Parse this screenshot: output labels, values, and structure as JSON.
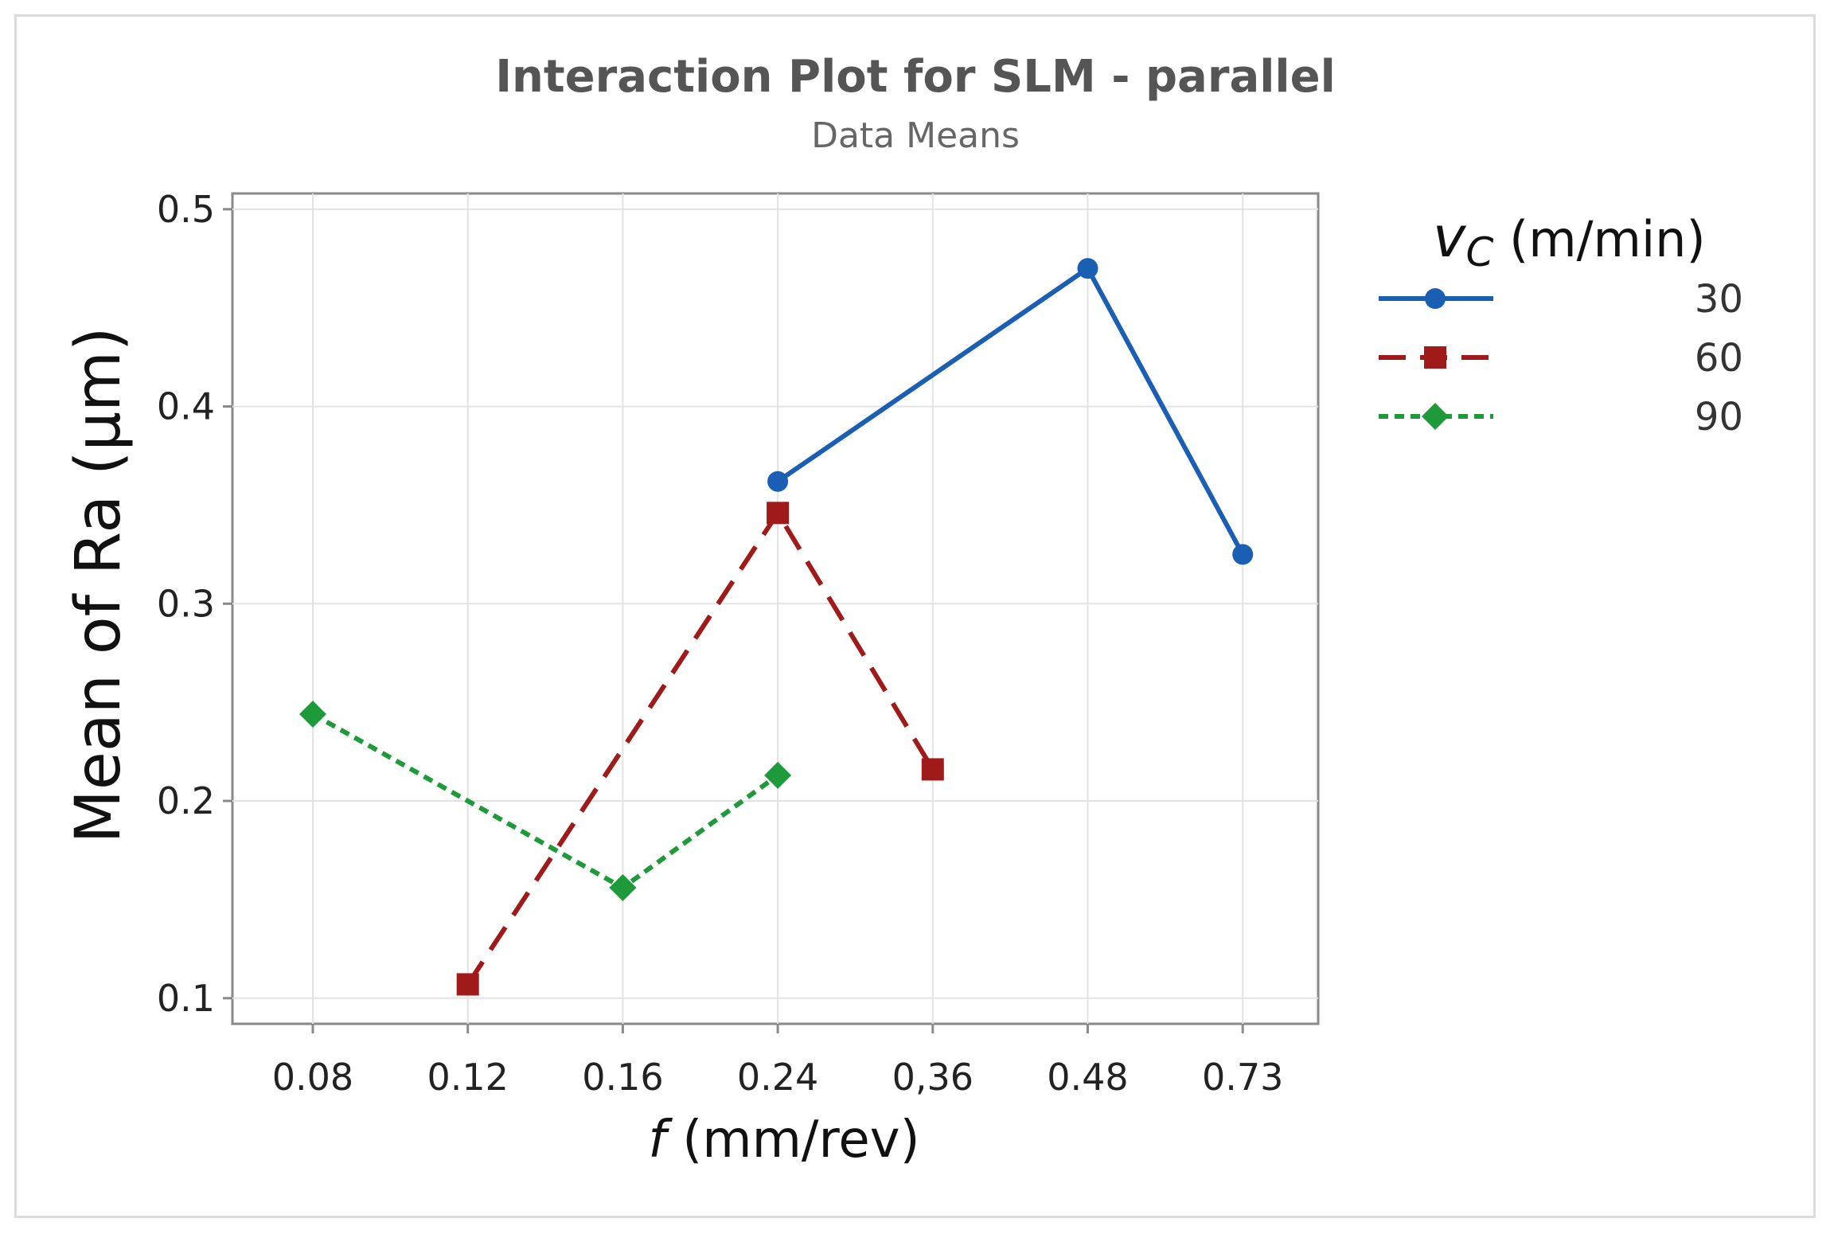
{
  "chart_data": {
    "type": "line",
    "title": "Interaction Plot for SLM - parallel",
    "subtitle": "Data Means",
    "xlabel_symbol": "f",
    "xlabel_unit": "(mm/rev)",
    "ylabel": "Mean of Ra (μm)",
    "categories": [
      "0.08",
      "0.12",
      "0.16",
      "0.24",
      "0,36",
      "0.48",
      "0.73"
    ],
    "ylim": [
      0.087,
      0.508
    ],
    "yticks": [
      "0.1",
      "0.2",
      "0.3",
      "0.4",
      "0.5"
    ],
    "ytick_values": [
      0.1,
      0.2,
      0.3,
      0.4,
      0.5
    ],
    "grid": true,
    "legend": {
      "title_symbol": "v",
      "title_subscript": "C",
      "title_unit": "(m/min)",
      "placement": "right"
    },
    "series": [
      {
        "name": "30",
        "color": "#1a5fb4",
        "marker": "circle",
        "dash": "solid",
        "points": [
          {
            "x": "0.24",
            "y": 0.362
          },
          {
            "x": "0.48",
            "y": 0.47
          },
          {
            "x": "0.73",
            "y": 0.325
          }
        ]
      },
      {
        "name": "60",
        "color": "#a01a1a",
        "marker": "square",
        "dash": "dashed",
        "points": [
          {
            "x": "0.12",
            "y": 0.107
          },
          {
            "x": "0.24",
            "y": 0.346
          },
          {
            "x": "0,36",
            "y": 0.216
          }
        ]
      },
      {
        "name": "90",
        "color": "#1e9a3a",
        "marker": "diamond",
        "dash": "dotted",
        "points": [
          {
            "x": "0.08",
            "y": 0.244
          },
          {
            "x": "0.16",
            "y": 0.156
          },
          {
            "x": "0.24",
            "y": 0.213
          }
        ]
      }
    ]
  }
}
